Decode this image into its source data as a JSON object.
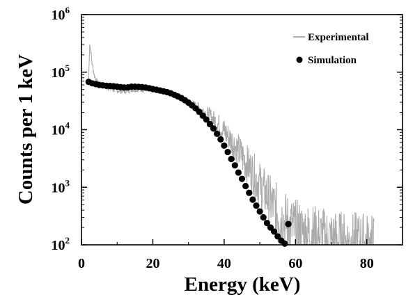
{
  "chart_data": {
    "type": "line",
    "xlabel": "Energy (keV)",
    "ylabel": "Counts per 1 keV",
    "xlim": [
      0,
      90
    ],
    "ylim": [
      100,
      1000000
    ],
    "y_scale": "log",
    "x_ticks": [
      0,
      20,
      40,
      60,
      80
    ],
    "x_tick_labels": [
      "0",
      "20",
      "40",
      "60",
      "80"
    ],
    "y_ticks": [
      100,
      1000,
      10000,
      100000,
      1000000
    ],
    "y_tick_labels": [
      {
        "base": "10",
        "exp": "2"
      },
      {
        "base": "10",
        "exp": "3"
      },
      {
        "base": "10",
        "exp": "4"
      },
      {
        "base": "10",
        "exp": "5"
      },
      {
        "base": "10",
        "exp": "6"
      }
    ],
    "grid": false,
    "legend_position": "top-right",
    "series": [
      {
        "name": "Experimental",
        "style": "line",
        "color": "#aaaaaa",
        "x": [
          2.0,
          2.3,
          2.6,
          3.0,
          3.5,
          4.0,
          5,
          6,
          8,
          10,
          12,
          14,
          16,
          18,
          20,
          22,
          24,
          26,
          28,
          30,
          32,
          34,
          36,
          38,
          40,
          42,
          44,
          46,
          48,
          50,
          52,
          54,
          56,
          58,
          60,
          62,
          64,
          66,
          68,
          70,
          72,
          74,
          76,
          78,
          80,
          82
        ],
        "y": [
          70000,
          320000,
          230000,
          140000,
          95000,
          72000,
          62000,
          58000,
          52000,
          48000,
          47000,
          50000,
          50000,
          50000,
          49000,
          47000,
          45000,
          41000,
          36000,
          31000,
          26000,
          21000,
          17000,
          13000,
          9500,
          6500,
          4300,
          2800,
          1800,
          1100,
          700,
          450,
          300,
          220,
          180,
          160,
          150,
          140,
          130,
          120,
          115,
          110,
          105,
          110,
          105,
          100
        ]
      },
      {
        "name": "Simulation",
        "style": "markers",
        "color": "#000000",
        "x": [
          2,
          3,
          4,
          5,
          6,
          7,
          8,
          9,
          10,
          11,
          12,
          13,
          14,
          15,
          16,
          17,
          18,
          19,
          20,
          21,
          22,
          23,
          24,
          25,
          26,
          27,
          28,
          29,
          30,
          31,
          32,
          33,
          34,
          35,
          36,
          37,
          38,
          39,
          40,
          41,
          42,
          43,
          44,
          45,
          46,
          47,
          48,
          49,
          50,
          51,
          52,
          53,
          54,
          55,
          56,
          57,
          58
        ],
        "y": [
          68000,
          64000,
          62000,
          60000,
          59000,
          58000,
          57500,
          57000,
          56000,
          55000,
          54000,
          54500,
          56000,
          56000,
          55500,
          55000,
          54000,
          52500,
          51000,
          49500,
          48000,
          46500,
          45000,
          43000,
          40500,
          38000,
          35500,
          32500,
          29500,
          26500,
          23500,
          20500,
          17500,
          15000,
          12500,
          10500,
          8500,
          6800,
          5300,
          4100,
          3100,
          2400,
          1800,
          1400,
          1050,
          800,
          610,
          480,
          380,
          300,
          240,
          200,
          170,
          140,
          118,
          105,
          230
        ]
      }
    ]
  }
}
